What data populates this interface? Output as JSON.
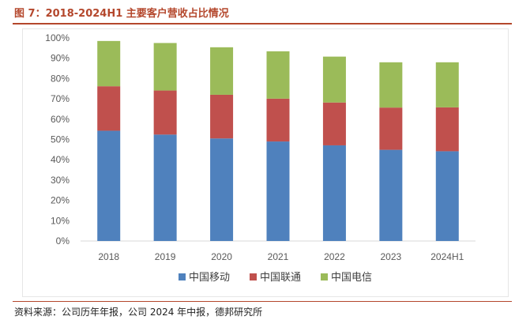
{
  "title": "图 7：2018-2024H1 主要客户营收占比情况",
  "source": "资料来源：公司历年年报，公司 2024 年中报，德邦研究所",
  "chart_data": {
    "type": "bar",
    "stacked": true,
    "categories": [
      "2018",
      "2019",
      "2020",
      "2021",
      "2022",
      "2023",
      "2024H1"
    ],
    "series": [
      {
        "name": "中国移动",
        "color": "#4f81bd",
        "values": [
          54.3,
          52.4,
          50.5,
          49,
          47.1,
          44.9,
          44.2
        ]
      },
      {
        "name": "中国联通",
        "color": "#c0504d",
        "values": [
          21.9,
          21.7,
          21.5,
          21.1,
          21.1,
          20.8,
          21.6
        ]
      },
      {
        "name": "中国电信",
        "color": "#9bbb59",
        "values": [
          22.3,
          23.4,
          23.4,
          23.3,
          22.6,
          22.3,
          22.2
        ]
      }
    ],
    "ylim": [
      0,
      100
    ],
    "yticks": [
      "0%",
      "10%",
      "20%",
      "30%",
      "40%",
      "50%",
      "60%",
      "70%",
      "80%",
      "90%",
      "100%"
    ],
    "grid": false,
    "legend_position": "bottom"
  }
}
